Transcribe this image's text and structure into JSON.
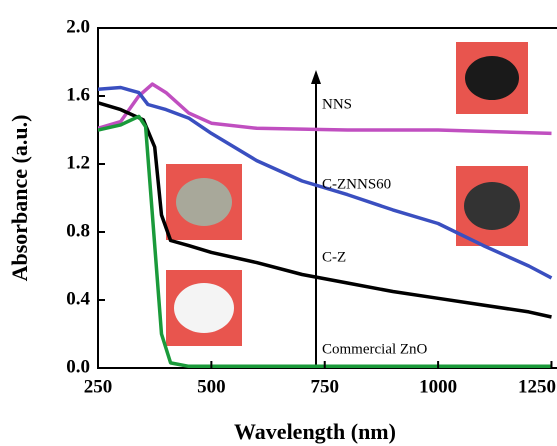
{
  "chart_data": {
    "type": "line",
    "xlabel": "Wavelength (nm)",
    "ylabel": "Absorbance (a.u.)",
    "xlim": [
      250,
      1260
    ],
    "ylim": [
      0,
      2
    ],
    "xticks": [
      250,
      500,
      750,
      1000,
      1250
    ],
    "yticks": [
      {
        "value": 0,
        "label": "0.0"
      },
      0.4,
      0.8,
      1.2,
      1.6,
      {
        "value": 2,
        "label": "2.0"
      }
    ],
    "series": [
      {
        "name": "NNS",
        "color": "#c04fc0",
        "x": [
          250,
          300,
          340,
          370,
          400,
          450,
          500,
          600,
          800,
          1000,
          1250
        ],
        "values": [
          1.41,
          1.45,
          1.6,
          1.67,
          1.62,
          1.5,
          1.44,
          1.41,
          1.4,
          1.4,
          1.38
        ]
      },
      {
        "name": "C-ZNNS60",
        "color": "#3a4fc0",
        "x": [
          250,
          300,
          340,
          360,
          400,
          450,
          500,
          600,
          700,
          800,
          900,
          1000,
          1100,
          1200,
          1250
        ],
        "values": [
          1.64,
          1.65,
          1.62,
          1.55,
          1.52,
          1.47,
          1.38,
          1.22,
          1.1,
          1.02,
          0.93,
          0.85,
          0.72,
          0.6,
          0.53
        ]
      },
      {
        "name": "C-Z",
        "color": "#000000",
        "x": [
          250,
          300,
          350,
          375,
          390,
          410,
          450,
          500,
          600,
          700,
          800,
          900,
          1000,
          1100,
          1200,
          1250
        ],
        "values": [
          1.56,
          1.52,
          1.46,
          1.3,
          0.9,
          0.75,
          0.72,
          0.68,
          0.62,
          0.55,
          0.5,
          0.45,
          0.41,
          0.37,
          0.33,
          0.3
        ]
      },
      {
        "name": "Commercial ZnO",
        "color": "#1a9a3a",
        "x": [
          250,
          300,
          340,
          355,
          370,
          390,
          410,
          450,
          1250
        ],
        "values": [
          1.4,
          1.43,
          1.48,
          1.42,
          0.9,
          0.2,
          0.03,
          0.01,
          0.01
        ]
      }
    ]
  }
}
